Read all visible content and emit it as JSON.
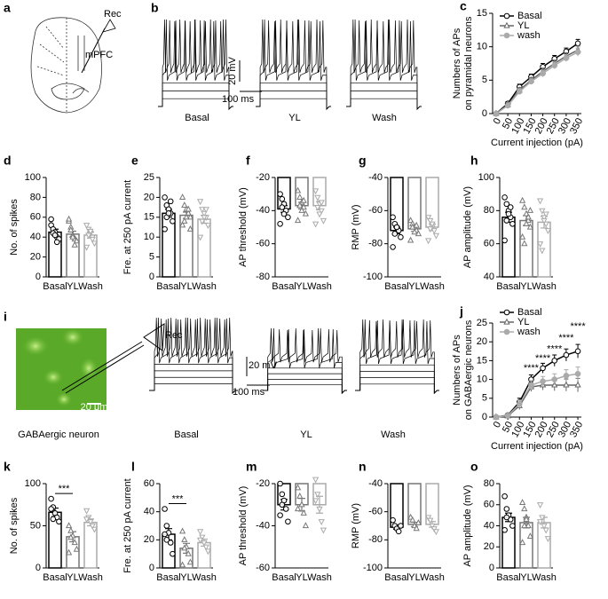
{
  "figure": {
    "panel_a": {
      "label": "a",
      "rec": "Rec",
      "region": "mPFC"
    },
    "panel_b": {
      "label": "b",
      "conditions": [
        "Basal",
        "YL",
        "Wash"
      ],
      "scale_voltage": "20 mV",
      "scale_time": "100 ms"
    },
    "panel_i": {
      "label": "i",
      "rec": "Rec",
      "caption": "GABAergic neuron",
      "scale": "20 μm",
      "conditions": [
        "Basal",
        "YL",
        "Wash"
      ],
      "scale_voltage": "20 mV",
      "scale_time": "100 ms"
    }
  },
  "chart_data": [
    {
      "type": "line",
      "panel": "c",
      "ylabel": [
        "Numbers of APs",
        "on pyramidal neurons"
      ],
      "xlabel": "Current injection (pA)",
      "x": [
        0,
        50,
        100,
        150,
        200,
        250,
        300,
        350
      ],
      "xlim": [
        -15,
        365
      ],
      "xticks": [
        0,
        50,
        100,
        150,
        200,
        250,
        300,
        350
      ],
      "ylim": [
        0,
        15
      ],
      "yticks": [
        0,
        5,
        10,
        15
      ],
      "legend": "top-left",
      "series": [
        {
          "name": "Basal",
          "color": "#000000",
          "marker": "circle",
          "values": [
            0,
            1.5,
            4,
            5.5,
            7,
            8.2,
            9.3,
            10.5
          ],
          "errors": [
            0,
            0.3,
            0.4,
            0.4,
            0.5,
            0.5,
            0.5,
            0.6
          ]
        },
        {
          "name": "YL",
          "color": "#666666",
          "marker": "triangle",
          "values": [
            0,
            1.3,
            3.5,
            5,
            6.3,
            7.5,
            8.6,
            9.5
          ],
          "errors": [
            0,
            0.3,
            0.4,
            0.4,
            0.5,
            0.5,
            0.5,
            0.6
          ]
        },
        {
          "name": "wash",
          "color": "#aaaaaa",
          "marker": "circle-filled",
          "values": [
            0,
            1.2,
            3.3,
            4.8,
            6,
            7.2,
            8.3,
            9.2
          ],
          "errors": [
            0,
            0.3,
            0.4,
            0.4,
            0.5,
            0.5,
            0.5,
            0.6
          ]
        }
      ]
    },
    {
      "type": "bar",
      "panel": "d",
      "ylabel": "No. of spikes",
      "categories": [
        "Basal",
        "YL",
        "Wash"
      ],
      "values": [
        45,
        43,
        42
      ],
      "errors": [
        3,
        3,
        3
      ],
      "points": [
        [
          52,
          48,
          45,
          40,
          38,
          58,
          44,
          42,
          35
        ],
        [
          56,
          50,
          42,
          38,
          36,
          58,
          47,
          40,
          32
        ],
        [
          52,
          48,
          44,
          40,
          34,
          30,
          42,
          46,
          38
        ]
      ],
      "colors": [
        "#000000",
        "#777777",
        "#aaaaaa"
      ],
      "markers": [
        "circle",
        "triangle",
        "triangle-down"
      ],
      "ylim": [
        0,
        100
      ],
      "yticks": [
        0,
        20,
        40,
        60,
        80,
        100
      ]
    },
    {
      "type": "bar",
      "panel": "e",
      "ylabel": "Fre. at 250 pA current",
      "categories": [
        "Basal",
        "YL",
        "Wash"
      ],
      "values": [
        16,
        15.5,
        14.5
      ],
      "errors": [
        1,
        0.8,
        1
      ],
      "points": [
        [
          20,
          18,
          17,
          16,
          14,
          12,
          15,
          16,
          19
        ],
        [
          20,
          18,
          17,
          16,
          15,
          13,
          14,
          15,
          17,
          12
        ],
        [
          19,
          17,
          16,
          15,
          13,
          10,
          14,
          15,
          17
        ]
      ],
      "colors": [
        "#000000",
        "#777777",
        "#aaaaaa"
      ],
      "markers": [
        "circle",
        "triangle",
        "triangle-down"
      ],
      "ylim": [
        0,
        25
      ],
      "yticks": [
        0,
        5,
        10,
        15,
        20,
        25
      ]
    },
    {
      "type": "bar",
      "panel": "f",
      "ylabel": "AP threshold (mV)",
      "categories": [
        "Basal",
        "YL",
        "Wash"
      ],
      "values": [
        -39,
        -37,
        -37
      ],
      "errors": [
        2,
        2,
        2.5
      ],
      "points": [
        [
          -30,
          -33,
          -36,
          -40,
          -44,
          -48,
          -38,
          -42
        ],
        [
          -28,
          -32,
          -35,
          -38,
          -42,
          -46,
          -37,
          -40,
          -34
        ],
        [
          -28,
          -32,
          -36,
          -40,
          -46,
          -48,
          -38,
          -42,
          -35
        ]
      ],
      "colors": [
        "#000000",
        "#777777",
        "#aaaaaa"
      ],
      "markers": [
        "circle",
        "triangle",
        "triangle-down"
      ],
      "ylim": [
        -80,
        -20
      ],
      "yticks": [
        -80,
        -60,
        -40,
        -20
      ]
    },
    {
      "type": "bar",
      "panel": "g",
      "ylabel": "RMP (mV)",
      "categories": [
        "Basal",
        "YL",
        "Wash"
      ],
      "values": [
        -72,
        -71,
        -70
      ],
      "errors": [
        2,
        1.5,
        2
      ],
      "points": [
        [
          -64,
          -68,
          -70,
          -72,
          -76,
          -82,
          -74,
          -70
        ],
        [
          -66,
          -68,
          -70,
          -72,
          -74,
          -78,
          -70,
          -73,
          -69
        ],
        [
          -64,
          -66,
          -70,
          -72,
          -75,
          -78,
          -71,
          -68
        ]
      ],
      "colors": [
        "#000000",
        "#777777",
        "#aaaaaa"
      ],
      "markers": [
        "circle",
        "triangle",
        "triangle-down"
      ],
      "ylim": [
        -100,
        -40
      ],
      "yticks": [
        -100,
        -80,
        -60,
        -40
      ]
    },
    {
      "type": "bar",
      "panel": "h",
      "ylabel": "AP amplitude (mV)",
      "categories": [
        "Basal",
        "YL",
        "Wash"
      ],
      "values": [
        76,
        74,
        73
      ],
      "errors": [
        3,
        3,
        3.5
      ],
      "points": [
        [
          88,
          84,
          80,
          76,
          72,
          62,
          74,
          78,
          82
        ],
        [
          86,
          82,
          78,
          74,
          70,
          64,
          60,
          72,
          76,
          80
        ],
        [
          86,
          80,
          76,
          72,
          68,
          60,
          56,
          74,
          78
        ]
      ],
      "colors": [
        "#000000",
        "#777777",
        "#aaaaaa"
      ],
      "markers": [
        "circle",
        "triangle",
        "triangle-down"
      ],
      "ylim": [
        40,
        100
      ],
      "yticks": [
        40,
        60,
        80,
        100
      ]
    },
    {
      "type": "line",
      "panel": "j",
      "ylabel": [
        "Numbers of APs",
        "on GABAergic neurons"
      ],
      "xlabel": "Current injection (pA)",
      "x": [
        0,
        50,
        100,
        150,
        200,
        250,
        300,
        350
      ],
      "xlim": [
        -15,
        365
      ],
      "xticks": [
        0,
        50,
        100,
        150,
        200,
        250,
        300,
        350
      ],
      "ylim": [
        0,
        25
      ],
      "yticks": [
        0,
        5,
        10,
        15,
        20,
        25
      ],
      "legend": "top-left",
      "series": [
        {
          "name": "Basal",
          "color": "#000000",
          "marker": "circle",
          "values": [
            0,
            0.5,
            4,
            10,
            13,
            15,
            16.5,
            17.5
          ],
          "errors": [
            0,
            0.3,
            1,
            1.2,
            1.3,
            1.5,
            1.6,
            1.8
          ]
        },
        {
          "name": "YL",
          "color": "#666666",
          "marker": "triangle",
          "values": [
            0,
            0.3,
            3,
            8,
            8.5,
            8.5,
            8.5,
            8.5
          ],
          "errors": [
            0,
            0.3,
            1,
            1.2,
            1.3,
            1.5,
            1.6,
            1.8
          ]
        },
        {
          "name": "wash",
          "color": "#aaaaaa",
          "marker": "circle-filled",
          "values": [
            0,
            0.4,
            3.5,
            8.5,
            9.5,
            10,
            11,
            11.5
          ],
          "errors": [
            0,
            0.3,
            1,
            1.2,
            1.3,
            1.5,
            1.6,
            1.8
          ]
        }
      ],
      "annotations": [
        {
          "text": "****",
          "x": 150,
          "y": 13
        },
        {
          "text": "****",
          "x": 200,
          "y": 15.5
        },
        {
          "text": "****",
          "x": 250,
          "y": 18
        },
        {
          "text": "****",
          "x": 300,
          "y": 21
        },
        {
          "text": "****",
          "x": 350,
          "y": 24
        }
      ]
    },
    {
      "type": "bar",
      "panel": "k",
      "ylabel": "No. of spikes",
      "categories": [
        "Basal",
        "YL",
        "Wash"
      ],
      "values": [
        66,
        37,
        54
      ],
      "errors": [
        5,
        6,
        4
      ],
      "points": [
        [
          82,
          72,
          65,
          60,
          55,
          70,
          58
        ],
        [
          50,
          44,
          38,
          30,
          22,
          18,
          36
        ],
        [
          68,
          60,
          55,
          50,
          46,
          58
        ]
      ],
      "colors": [
        "#000000",
        "#777777",
        "#aaaaaa"
      ],
      "markers": [
        "circle",
        "triangle",
        "triangle-down"
      ],
      "ylim": [
        0,
        100
      ],
      "yticks": [
        0,
        50,
        100
      ],
      "significance": {
        "from": "Basal",
        "to": "YL",
        "label": "***"
      }
    },
    {
      "type": "bar",
      "panel": "l",
      "ylabel": "Fre. at 250 pA current",
      "categories": [
        "Basal",
        "YL",
        "Wash"
      ],
      "values": [
        24,
        14,
        18
      ],
      "errors": [
        4,
        3.5,
        2.5
      ],
      "points": [
        [
          42,
          30,
          25,
          18,
          10,
          24,
          20
        ],
        [
          26,
          20,
          15,
          10,
          4,
          2,
          14
        ],
        [
          26,
          22,
          18,
          15,
          12,
          20
        ]
      ],
      "colors": [
        "#000000",
        "#777777",
        "#aaaaaa"
      ],
      "markers": [
        "circle",
        "triangle",
        "triangle-down"
      ],
      "ylim": [
        0,
        60
      ],
      "yticks": [
        0,
        20,
        40,
        60
      ],
      "significance": {
        "from": "Basal",
        "to": "YL",
        "label": "***"
      }
    },
    {
      "type": "bar",
      "panel": "m",
      "ylabel": "AP threshold (mV)",
      "categories": [
        "Basal",
        "YL",
        "Wash"
      ],
      "values": [
        -30,
        -30,
        -30
      ],
      "errors": [
        2.5,
        3,
        4
      ],
      "points": [
        [
          -20,
          -25,
          -28,
          -32,
          -38,
          -35,
          -30
        ],
        [
          -22,
          -26,
          -30,
          -34,
          -40,
          -32
        ],
        [
          -18,
          -25,
          -32,
          -38,
          -42,
          -28
        ]
      ],
      "colors": [
        "#000000",
        "#777777",
        "#aaaaaa"
      ],
      "markers": [
        "circle",
        "triangle",
        "triangle-down"
      ],
      "ylim": [
        -60,
        -20
      ],
      "yticks": [
        -60,
        -40,
        -20
      ]
    },
    {
      "type": "bar",
      "panel": "n",
      "ylabel": "RMP (mV)",
      "categories": [
        "Basal",
        "YL",
        "Wash"
      ],
      "values": [
        -71,
        -69,
        -69
      ],
      "errors": [
        1.5,
        1.5,
        2
      ],
      "points": [
        [
          -66,
          -70,
          -72,
          -74,
          -70
        ],
        [
          -64,
          -66,
          -70,
          -72,
          -68
        ],
        [
          -64,
          -66,
          -70,
          -72,
          -74
        ]
      ],
      "colors": [
        "#000000",
        "#777777",
        "#aaaaaa"
      ],
      "markers": [
        "circle",
        "triangle",
        "triangle-down"
      ],
      "ylim": [
        -100,
        -40
      ],
      "yticks": [
        -100,
        -80,
        -60,
        -40
      ]
    },
    {
      "type": "bar",
      "panel": "o",
      "ylabel": "AP amplitude (mV)",
      "categories": [
        "Basal",
        "YL",
        "Wash"
      ],
      "values": [
        48,
        43,
        43
      ],
      "errors": [
        4,
        5,
        5
      ],
      "points": [
        [
          68,
          56,
          50,
          46,
          40,
          36,
          48
        ],
        [
          62,
          56,
          48,
          40,
          30,
          24,
          40,
          46
        ],
        [
          60,
          48,
          40,
          36,
          28,
          44
        ]
      ],
      "colors": [
        "#000000",
        "#777777",
        "#aaaaaa"
      ],
      "markers": [
        "circle",
        "triangle",
        "triangle-down"
      ],
      "ylim": [
        0,
        80
      ],
      "yticks": [
        0,
        20,
        40,
        60,
        80
      ]
    }
  ]
}
